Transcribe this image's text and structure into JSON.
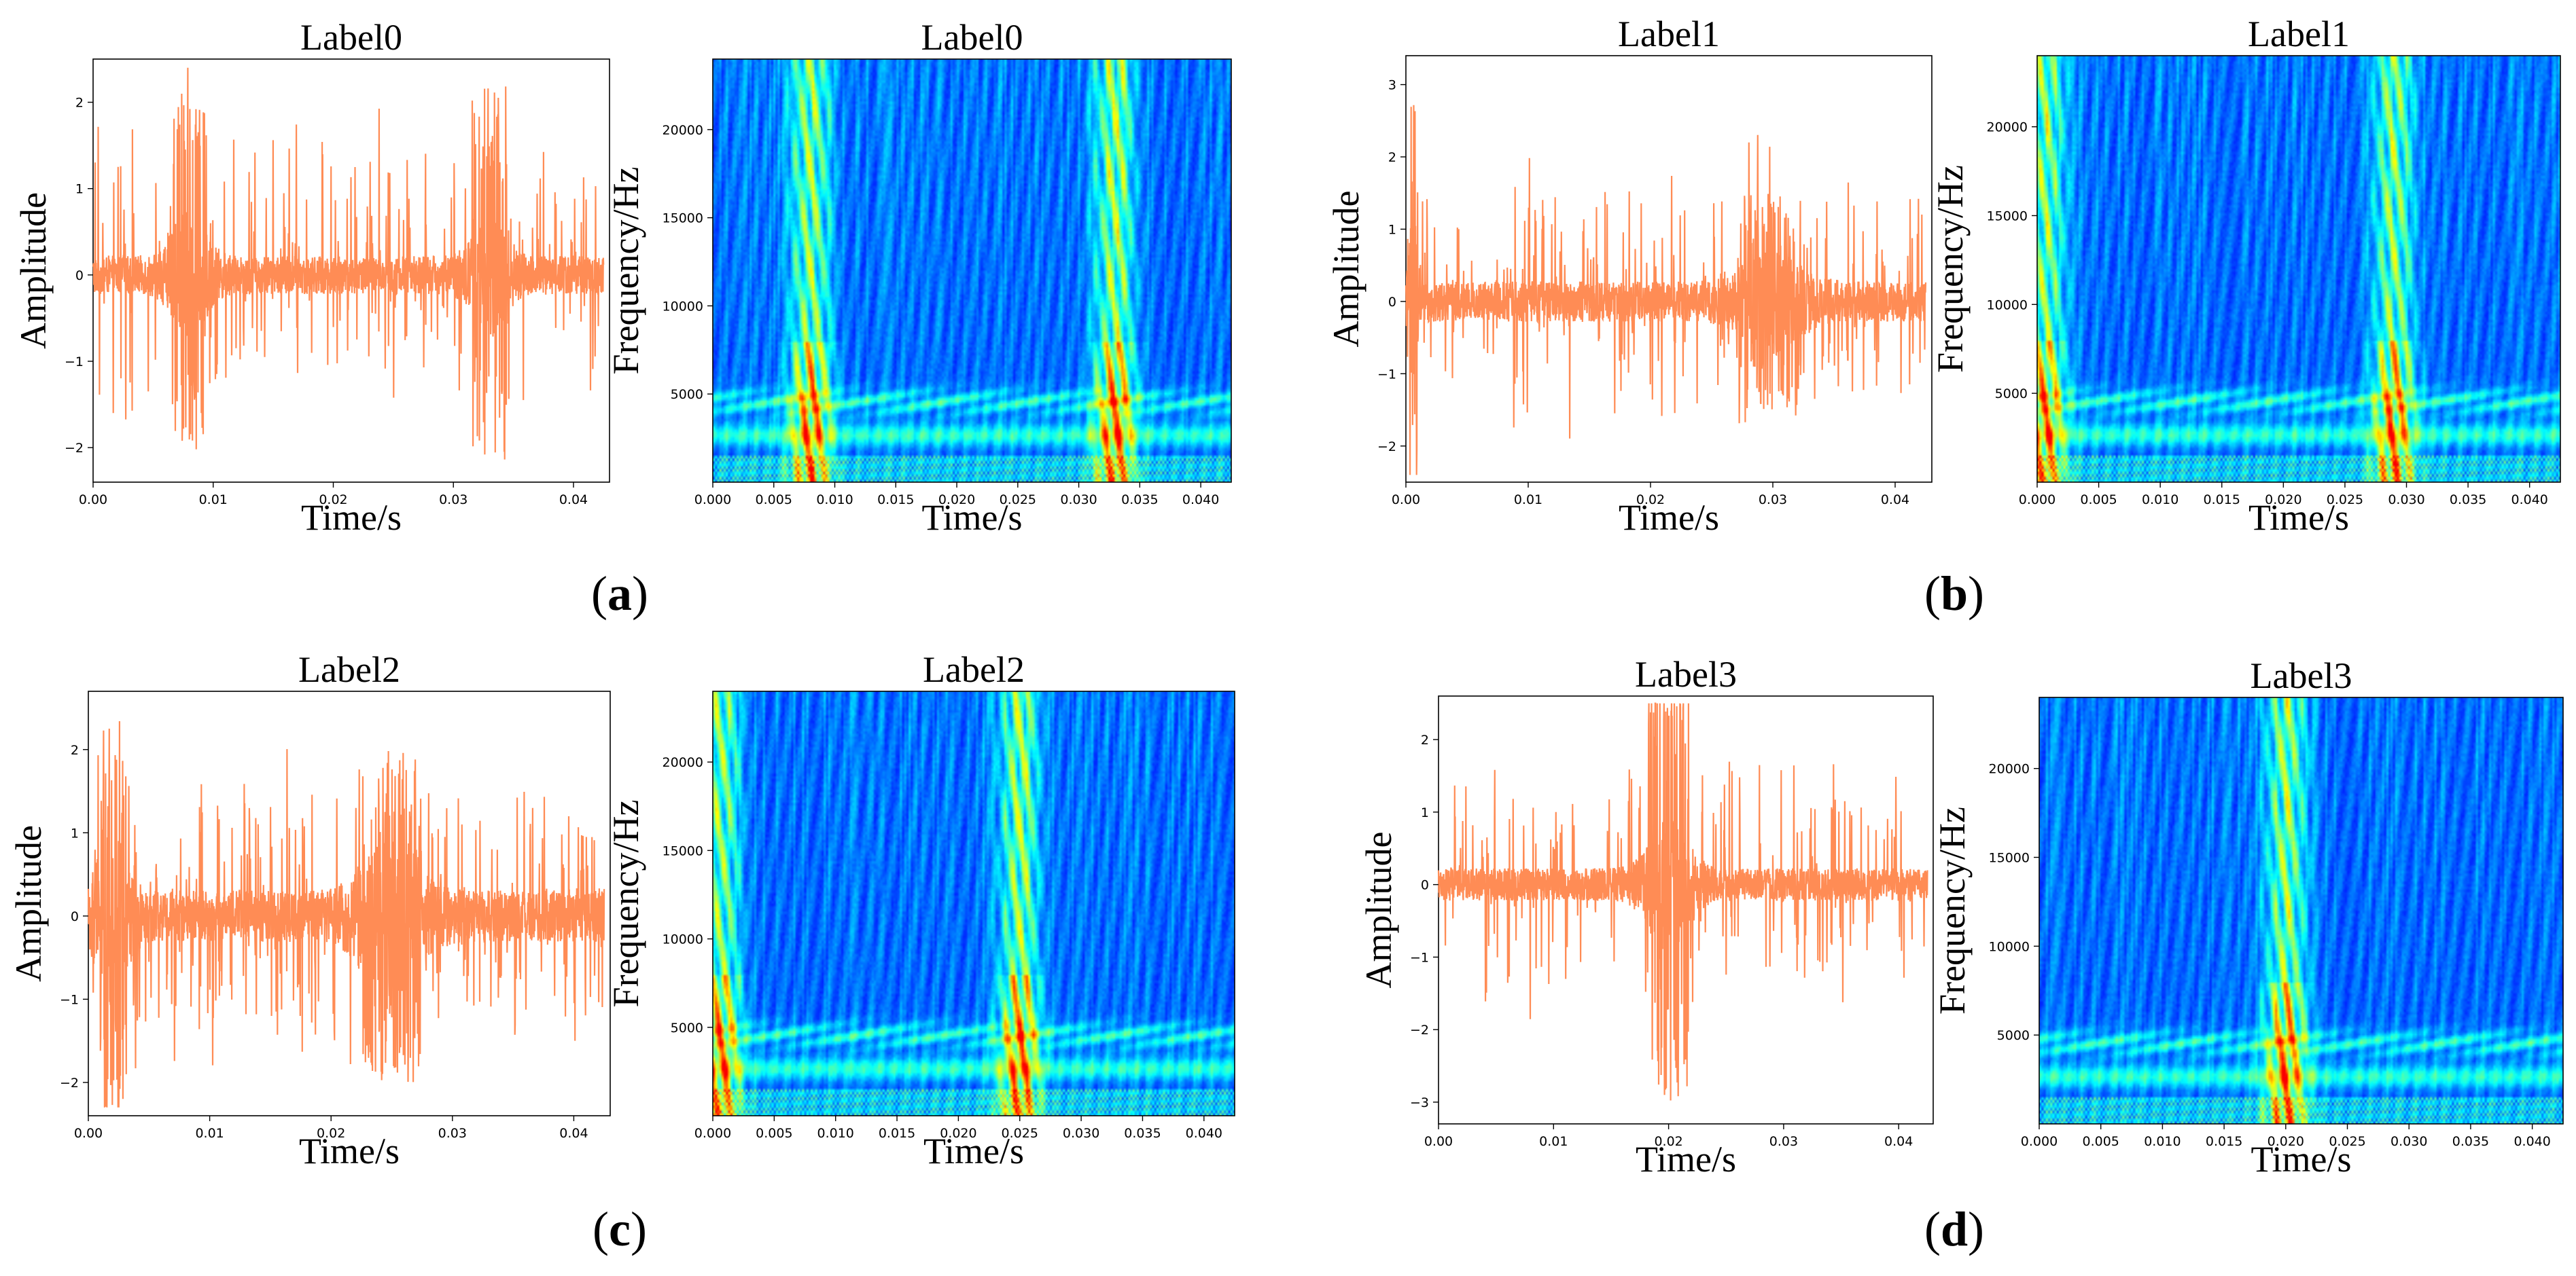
{
  "chart_data": [
    {
      "panel": "a",
      "kind": "waveform",
      "type": "line",
      "title": "Label0",
      "xlabel": "Time/s",
      "ylabel": "Amplitude",
      "xlim": [
        0,
        0.043
      ],
      "ylim": [
        -2.4,
        2.5
      ],
      "xticks": [
        "0.00",
        "0.01",
        "0.02",
        "0.03",
        "0.04"
      ],
      "yticks": [
        "2",
        "1",
        "0",
        "−1",
        "−2"
      ],
      "series_color": "#ff8c55",
      "noise": 0.16,
      "spike_rate": 0.12,
      "bursts": [
        {
          "t": 0.008,
          "amp": 2.2,
          "width": 0.0018
        },
        {
          "t": 0.033,
          "amp": 2.2,
          "width": 0.0018
        }
      ]
    },
    {
      "panel": "a",
      "kind": "spectrogram",
      "type": "heatmap",
      "title": "Label0",
      "xlabel": "Time/s",
      "ylabel": "Frequency/Hz",
      "xlim": [
        0,
        0.0425
      ],
      "ylim": [
        0,
        24000
      ],
      "xticks": [
        "0.000",
        "0.005",
        "0.010",
        "0.015",
        "0.020",
        "0.025",
        "0.030",
        "0.035",
        "0.040"
      ],
      "yticks": [
        "20000",
        "15000",
        "10000",
        "5000"
      ],
      "events": [
        0.008,
        0.033
      ],
      "band_hz": 4500
    },
    {
      "panel": "b",
      "kind": "waveform",
      "type": "line",
      "title": "Label1",
      "xlabel": "Time/s",
      "ylabel": "Amplitude",
      "xlim": [
        0,
        0.043
      ],
      "ylim": [
        -2.5,
        3.4
      ],
      "xticks": [
        "0.00",
        "0.01",
        "0.02",
        "0.03",
        "0.04"
      ],
      "yticks": [
        "3",
        "2",
        "1",
        "0",
        "−1",
        "−2"
      ],
      "series_color": "#ff8c55",
      "noise": 0.2,
      "spike_rate": 0.14,
      "bursts": [
        {
          "t": 0.0006,
          "amp": 3.2,
          "width": 0.0004
        },
        {
          "t": 0.03,
          "amp": 1.5,
          "width": 0.003
        }
      ]
    },
    {
      "panel": "b",
      "kind": "spectrogram",
      "type": "heatmap",
      "title": "Label1",
      "xlabel": "Time/s",
      "ylabel": "Frequency/Hz",
      "xlim": [
        0,
        0.0425
      ],
      "ylim": [
        0,
        24000
      ],
      "xticks": [
        "0.000",
        "0.005",
        "0.010",
        "0.015",
        "0.020",
        "0.025",
        "0.030",
        "0.035",
        "0.040"
      ],
      "yticks": [
        "20000",
        "15000",
        "10000",
        "5000"
      ],
      "events": [
        0.0005,
        0.029
      ],
      "band_hz": 4500
    },
    {
      "panel": "c",
      "kind": "waveform",
      "type": "line",
      "title": "Label2",
      "xlabel": "Time/s",
      "ylabel": "Amplitude",
      "xlim": [
        0,
        0.043
      ],
      "ylim": [
        -2.4,
        2.7
      ],
      "xticks": [
        "0.00",
        "0.01",
        "0.02",
        "0.03",
        "0.04"
      ],
      "yticks": [
        "2",
        "1",
        "0",
        "−1",
        "−2"
      ],
      "series_color": "#ff8c55",
      "noise": 0.22,
      "spike_rate": 0.16,
      "bursts": [
        {
          "t": 0.002,
          "amp": 2.4,
          "width": 0.0015
        },
        {
          "t": 0.025,
          "amp": 2.0,
          "width": 0.003
        }
      ]
    },
    {
      "panel": "c",
      "kind": "spectrogram",
      "type": "heatmap",
      "title": "Label2",
      "xlabel": "Time/s",
      "ylabel": "Frequency/Hz",
      "xlim": [
        0,
        0.0425
      ],
      "ylim": [
        0,
        24000
      ],
      "xticks": [
        "0.000",
        "0.005",
        "0.010",
        "0.015",
        "0.020",
        "0.025",
        "0.030",
        "0.035",
        "0.040"
      ],
      "yticks": [
        "20000",
        "15000",
        "10000",
        "5000"
      ],
      "events": [
        0.0005,
        0.025
      ],
      "band_hz": 4500
    },
    {
      "panel": "d",
      "kind": "waveform",
      "type": "line",
      "title": "Label3",
      "xlabel": "Time/s",
      "ylabel": "Amplitude",
      "xlim": [
        0,
        0.043
      ],
      "ylim": [
        -3.3,
        2.6
      ],
      "xticks": [
        "0.00",
        "0.01",
        "0.02",
        "0.03",
        "0.04"
      ],
      "yticks": [
        "2",
        "1",
        "0",
        "−1",
        "−2",
        "−3"
      ],
      "series_color": "#ff8c55",
      "noise": 0.16,
      "spike_rate": 0.1,
      "bursts": [
        {
          "t": 0.02,
          "amp": 3.0,
          "width": 0.0022
        }
      ]
    },
    {
      "panel": "d",
      "kind": "spectrogram",
      "type": "heatmap",
      "title": "Label3",
      "xlabel": "Time/s",
      "ylabel": "Frequency/Hz",
      "xlim": [
        0,
        0.0425
      ],
      "ylim": [
        0,
        24000
      ],
      "xticks": [
        "0.000",
        "0.005",
        "0.010",
        "0.015",
        "0.020",
        "0.025",
        "0.030",
        "0.035",
        "0.040"
      ],
      "yticks": [
        "20000",
        "15000",
        "10000",
        "5000"
      ],
      "events": [
        0.02
      ],
      "band_hz": 4500
    }
  ],
  "panel_labels": [
    "(a)",
    "(b)",
    "(c)",
    "(d)"
  ]
}
